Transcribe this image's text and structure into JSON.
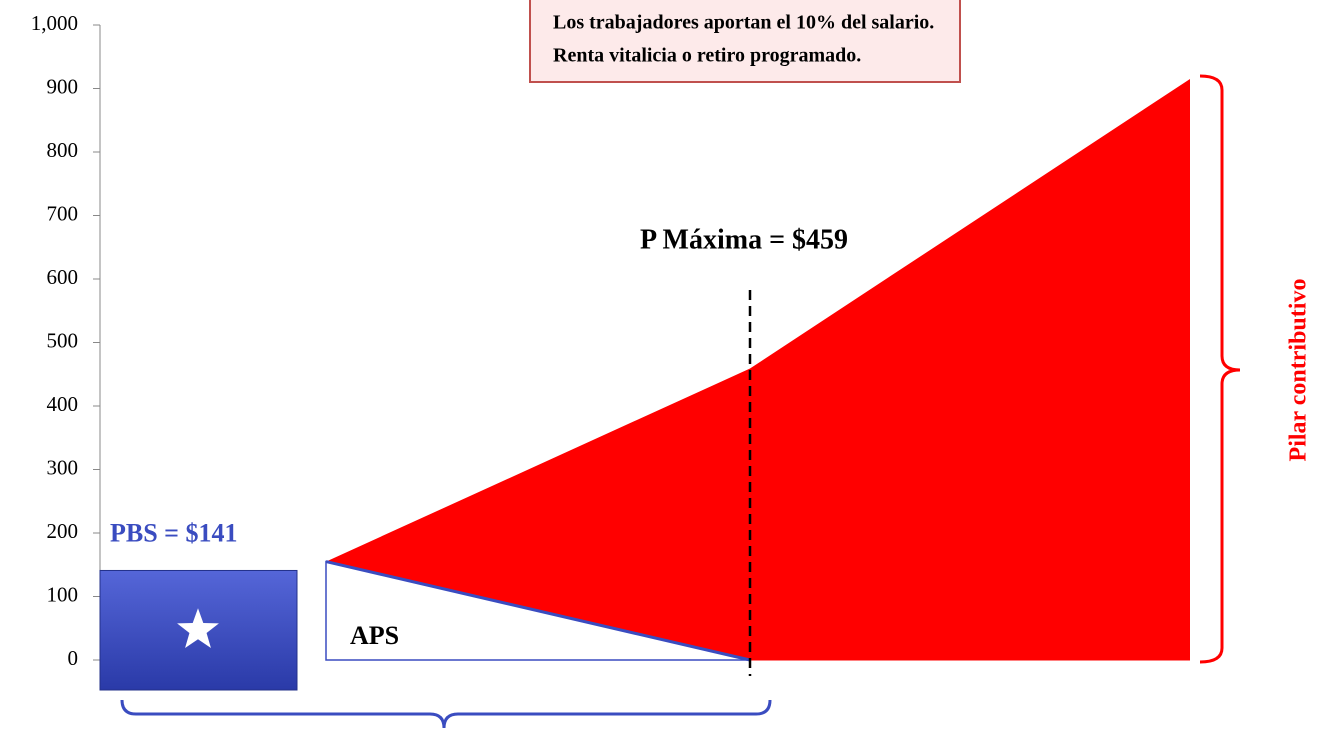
{
  "chart_data": {
    "type": "area",
    "categories": [
      null,
      null,
      null
    ],
    "series": [
      {
        "name": "Pilar contributivo",
        "color": "#ff0000",
        "values": [
          155,
          459,
          915
        ]
      },
      {
        "name": "APS",
        "color": "#ffffff",
        "values": [
          155,
          0,
          0
        ]
      }
    ],
    "pbs": {
      "label": "PBS = $141",
      "value": 141,
      "color": "#3a4cc0"
    },
    "pmax": {
      "label": "P Máxima = $459",
      "value": 459
    },
    "annotation": [
      "Los trabajadores aportan el 10% del salario.",
      "Renta vitalicia o retiro programado."
    ],
    "ylim": [
      0,
      1000
    ],
    "yticks": [
      0,
      100,
      200,
      300,
      400,
      500,
      600,
      700,
      800,
      900,
      {
        "value": 1000,
        "label": "1,000"
      }
    ]
  }
}
